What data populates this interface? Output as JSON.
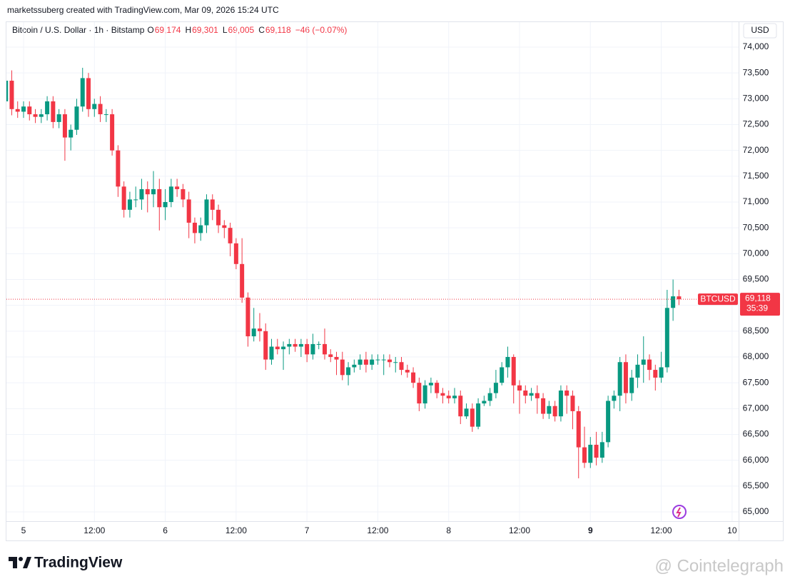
{
  "header": {
    "credit": "marketssuberg created with TradingView.com, Mar 09, 2026 15:24 UTC",
    "symbol": "Bitcoin / U.S. Dollar · 1h · Bitstamp",
    "ohlc_legend": [
      {
        "key": "O",
        "value": "69,174"
      },
      {
        "key": "H",
        "value": "69,301"
      },
      {
        "key": "L",
        "value": "69,005"
      },
      {
        "key": "C",
        "value": "69,118"
      }
    ],
    "change": "−46 (−0.07%)"
  },
  "price_tag": {
    "symbol": "BTCUSD",
    "price": "69,118",
    "countdown": "35:39"
  },
  "footer": {
    "logo": "TradingView",
    "watermark": "@ Cointelegraph"
  },
  "chart_data": {
    "type": "candlestick",
    "currency": "USD",
    "up_color": "#089981",
    "down_color": "#f23645",
    "grid": true,
    "xlim": [
      -2.78,
      120.5
    ],
    "xticks": [
      {
        "value": 0,
        "label": "5"
      },
      {
        "value": 12,
        "label": "12:00"
      },
      {
        "value": 24,
        "label": "6"
      },
      {
        "value": 36,
        "label": "12:00"
      },
      {
        "value": 48,
        "label": "7"
      },
      {
        "value": 60,
        "label": "12:00"
      },
      {
        "value": 72,
        "label": "8"
      },
      {
        "value": 84,
        "label": "12:00"
      },
      {
        "value": 96,
        "label": "9"
      },
      {
        "value": 108,
        "label": "12:00"
      },
      {
        "value": 120,
        "label": "10"
      }
    ],
    "ylim": [
      64820,
      74498
    ],
    "yticks": [
      {
        "value": 65000,
        "label": "65,000"
      },
      {
        "value": 65500,
        "label": "65,500"
      },
      {
        "value": 66000,
        "label": "66,000"
      },
      {
        "value": 66500,
        "label": "66,500"
      },
      {
        "value": 67000,
        "label": "67,000"
      },
      {
        "value": 67500,
        "label": "67,500"
      },
      {
        "value": 68000,
        "label": "68,000"
      },
      {
        "value": 68500,
        "label": "68,500"
      },
      {
        "value": 69000,
        "label": "69,000"
      },
      {
        "value": 69500,
        "label": "69,500"
      },
      {
        "value": 70000,
        "label": "70,000"
      },
      {
        "value": 70500,
        "label": "70,500"
      },
      {
        "value": 71000,
        "label": "71,000"
      },
      {
        "value": 71500,
        "label": "71,500"
      },
      {
        "value": 72000,
        "label": "72,000"
      },
      {
        "value": 72500,
        "label": "72,500"
      },
      {
        "value": 73000,
        "label": "73,000"
      },
      {
        "value": 73500,
        "label": "73,500"
      },
      {
        "value": 74000,
        "label": "74,000"
      }
    ],
    "x": [
      -3,
      -2,
      -1,
      0,
      1,
      2,
      3,
      4,
      5,
      6,
      7,
      8,
      9,
      10,
      11,
      12,
      13,
      14,
      15,
      16,
      17,
      18,
      19,
      20,
      21,
      22,
      23,
      24,
      25,
      26,
      27,
      28,
      29,
      30,
      31,
      32,
      33,
      34,
      35,
      36,
      37,
      38,
      39,
      40,
      41,
      42,
      43,
      44,
      45,
      46,
      47,
      48,
      49,
      50,
      51,
      52,
      53,
      54,
      55,
      56,
      57,
      58,
      59,
      60,
      61,
      62,
      63,
      64,
      65,
      66,
      67,
      68,
      69,
      70,
      71,
      72,
      73,
      74,
      75,
      76,
      77,
      78,
      79,
      80,
      81,
      82,
      83,
      84,
      85,
      86,
      87,
      88,
      89,
      90,
      91,
      92,
      93,
      94,
      95,
      96,
      97,
      98,
      99,
      100,
      101,
      102,
      103,
      104,
      105,
      106,
      107,
      108,
      109,
      110,
      111
    ],
    "open": [
      72950,
      73350,
      72800,
      72750,
      72850,
      72700,
      72650,
      72700,
      72950,
      72550,
      72700,
      72250,
      72400,
      72850,
      73400,
      72800,
      72900,
      72700,
      72700,
      72000,
      71300,
      70850,
      71050,
      71050,
      71250,
      71150,
      71250,
      70900,
      71000,
      71300,
      71250,
      71050,
      70600,
      70400,
      70550,
      71050,
      70850,
      70550,
      70500,
      70200,
      69800,
      69150,
      68400,
      68550,
      68500,
      67950,
      68200,
      68150,
      68200,
      68250,
      68200,
      68250,
      68050,
      68250,
      68250,
      68050,
      68000,
      67950,
      67650,
      67800,
      67850,
      67950,
      67850,
      67950,
      67950,
      67950,
      67900,
      67900,
      67750,
      67700,
      67500,
      67100,
      67450,
      67500,
      67300,
      67250,
      67200,
      67250,
      66850,
      67000,
      66650,
      67100,
      67150,
      67300,
      67500,
      67800,
      68000,
      67450,
      67350,
      67250,
      67300,
      67200,
      66900,
      67050,
      66850,
      67350,
      67250,
      66950,
      66250,
      65950,
      66300,
      66050,
      66350,
      67150,
      67250,
      67900,
      67300,
      67600,
      67850,
      67950,
      67750,
      67600,
      67800,
      68950,
      69174
    ],
    "high": [
      73450,
      73550,
      72950,
      72950,
      72950,
      72800,
      72800,
      73050,
      73050,
      72800,
      72800,
      72500,
      73000,
      73600,
      73500,
      73000,
      73050,
      72800,
      72800,
      72100,
      71400,
      71200,
      71300,
      71450,
      71400,
      71600,
      71450,
      71250,
      71450,
      71450,
      71350,
      71200,
      70700,
      70700,
      71150,
      71150,
      70950,
      70650,
      70600,
      70300,
      70300,
      69250,
      68950,
      68850,
      68650,
      68350,
      68350,
      68300,
      68350,
      68350,
      68350,
      68350,
      68450,
      68300,
      68550,
      68150,
      68100,
      68100,
      67900,
      67950,
      68050,
      68100,
      68050,
      68050,
      68050,
      68050,
      68000,
      68000,
      67850,
      67800,
      67600,
      67550,
      67600,
      67550,
      67400,
      67350,
      67400,
      67350,
      67100,
      67100,
      67200,
      67250,
      67400,
      67750,
      67900,
      68200,
      68050,
      67550,
      67450,
      67400,
      67450,
      67300,
      67150,
      67150,
      67450,
      67450,
      67350,
      67050,
      66650,
      66450,
      66550,
      66550,
      67250,
      67350,
      68000,
      68050,
      67750,
      68050,
      68400,
      68050,
      67850,
      68100,
      69300,
      69500,
      69301
    ],
    "low": [
      72830,
      72680,
      72630,
      72630,
      72580,
      72530,
      72530,
      72580,
      72430,
      72430,
      71800,
      72000,
      72300,
      72750,
      72650,
      72650,
      72550,
      72550,
      71900,
      71100,
      70700,
      70700,
      70900,
      70850,
      70800,
      70900,
      70450,
      70650,
      70900,
      71100,
      70900,
      70300,
      70200,
      70250,
      70400,
      70650,
      70400,
      70300,
      69950,
      69700,
      69050,
      68200,
      68300,
      68300,
      67750,
      67850,
      68050,
      67750,
      68050,
      68100,
      68000,
      67900,
      67950,
      68150,
      67950,
      67900,
      67650,
      67550,
      67450,
      67700,
      67750,
      67700,
      67750,
      67850,
      67650,
      67800,
      67700,
      67650,
      67600,
      67400,
      66950,
      67000,
      67300,
      67200,
      67100,
      67100,
      67100,
      66700,
      66800,
      66550,
      66600,
      67050,
      67050,
      67200,
      67450,
      67600,
      67100,
      66900,
      67100,
      67150,
      66900,
      66800,
      66800,
      66750,
      66750,
      66900,
      66600,
      65650,
      65850,
      65850,
      65900,
      65950,
      66250,
      67000,
      66950,
      67100,
      67150,
      67400,
      67500,
      67550,
      67350,
      67500,
      67700,
      68700,
      69005
    ],
    "close": [
      73350,
      72800,
      72750,
      72850,
      72700,
      72650,
      72700,
      72950,
      72550,
      72700,
      72250,
      72400,
      72850,
      73400,
      72800,
      72900,
      72700,
      72700,
      72000,
      71300,
      70850,
      71050,
      71050,
      71250,
      71150,
      71250,
      70900,
      71000,
      71300,
      71250,
      71050,
      70600,
      70400,
      70550,
      71050,
      70850,
      70550,
      70500,
      70200,
      69800,
      69150,
      68400,
      68550,
      68500,
      67950,
      68200,
      68150,
      68200,
      68250,
      68200,
      68250,
      68050,
      68250,
      68250,
      68050,
      68000,
      67950,
      67650,
      67800,
      67850,
      67950,
      67850,
      67950,
      67950,
      67950,
      67900,
      67900,
      67750,
      67700,
      67500,
      67100,
      67450,
      67500,
      67300,
      67250,
      67200,
      67250,
      66850,
      67000,
      66650,
      67100,
      67150,
      67300,
      67500,
      67800,
      68000,
      67450,
      67350,
      67250,
      67300,
      67200,
      66900,
      67050,
      66850,
      67350,
      67250,
      66950,
      66250,
      65950,
      66300,
      66050,
      66350,
      67150,
      67250,
      67900,
      67300,
      67600,
      67850,
      67950,
      67750,
      67600,
      67800,
      68950,
      69174,
      69118
    ]
  }
}
